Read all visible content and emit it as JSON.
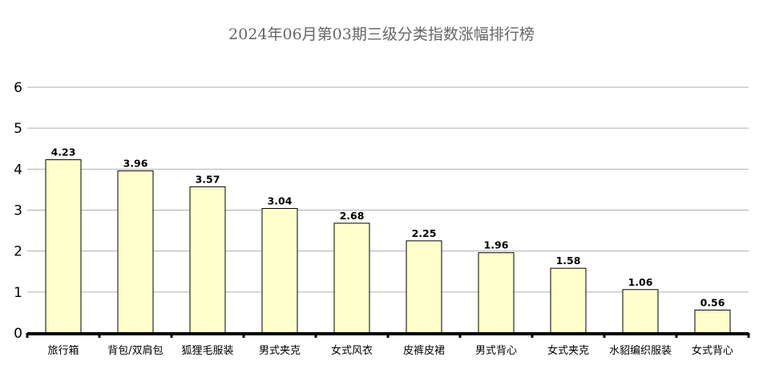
{
  "chart_data": {
    "type": "bar",
    "title": "2024年06月第03期三级分类指数涨幅排行榜",
    "xlabel": "",
    "ylabel": "",
    "categories": [
      "旅行箱",
      "背包/双肩包",
      "狐狸毛服装",
      "男式夹克",
      "女式风衣",
      "皮裤皮裙",
      "男式背心",
      "女式夹克",
      "水貂编织服装",
      "女式背心"
    ],
    "values": [
      4.23,
      3.96,
      3.57,
      3.04,
      2.68,
      2.25,
      1.96,
      1.58,
      1.06,
      0.56
    ],
    "value_labels": [
      "4.23",
      "3.96",
      "3.57",
      "3.04",
      "2.68",
      "2.25",
      "1.96",
      "1.58",
      "1.06",
      "0.56"
    ],
    "yticks": [
      "0",
      "1",
      "2",
      "3",
      "4",
      "5",
      "6"
    ],
    "ylim": [
      0,
      6
    ],
    "grid": true,
    "bar_color": "#ffffcc",
    "bar_border_color": "#000000",
    "grid_color": "#b0b0b0",
    "title_color": "#666666"
  }
}
